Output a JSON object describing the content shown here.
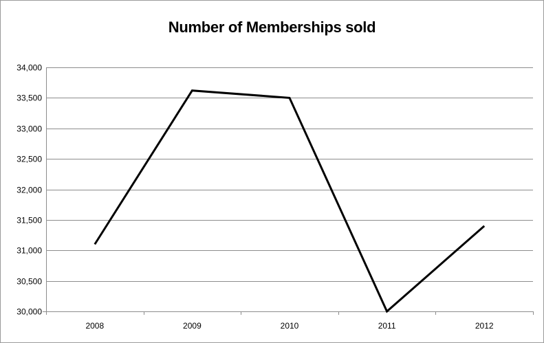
{
  "chart_data": {
    "type": "line",
    "title": "Number of Memberships sold",
    "xlabel": "",
    "ylabel": "",
    "categories": [
      "2008",
      "2009",
      "2010",
      "2011",
      "2012"
    ],
    "series": [
      {
        "values": [
          31100,
          33620,
          33500,
          30000,
          31400
        ]
      }
    ],
    "ylim": [
      30000,
      34000
    ],
    "yticks": [
      30000,
      30500,
      31000,
      31500,
      32000,
      32500,
      33000,
      33500,
      34000
    ],
    "ytick_labels": [
      "30,000",
      "30,500",
      "31,000",
      "31,500",
      "32,000",
      "32,500",
      "33,000",
      "33,500",
      "34,000"
    ],
    "grid": "horizontal",
    "legend": "none",
    "line_color": "#000000",
    "grid_color": "#8c8c8c"
  }
}
